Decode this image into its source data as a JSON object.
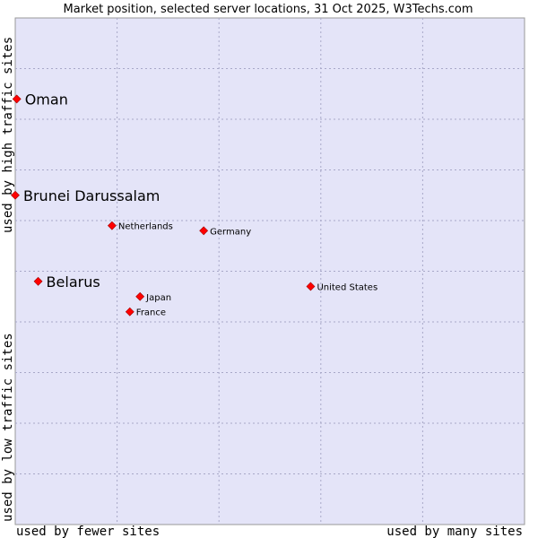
{
  "chart_data": {
    "type": "scatter",
    "title": "Market position, selected server locations, 31 Oct 2025, W3Techs.com",
    "xlabel_left": "used by fewer sites",
    "xlabel_right": "used by many sites",
    "ylabel_bottom": "used by low traffic sites",
    "ylabel_top": "used by high traffic sites",
    "xlim": [
      0,
      10
    ],
    "ylim": [
      0,
      10
    ],
    "grid": true,
    "x_gridlines": [
      2,
      4,
      6,
      8
    ],
    "y_gridlines": [
      1,
      2,
      3,
      4,
      5,
      6,
      7,
      8,
      9
    ],
    "marker_color": "#ff0000",
    "background_color": "#e4e4f8",
    "points": [
      {
        "name": "Oman",
        "x": 0.03,
        "y": 8.4,
        "highlight": true
      },
      {
        "name": "Brunei Darussalam",
        "x": 0.0,
        "y": 6.5,
        "highlight": true
      },
      {
        "name": "Belarus",
        "x": 0.45,
        "y": 4.8,
        "highlight": true
      },
      {
        "name": "Netherlands",
        "x": 1.9,
        "y": 5.9,
        "highlight": false
      },
      {
        "name": "Germany",
        "x": 3.7,
        "y": 5.8,
        "highlight": false
      },
      {
        "name": "United States",
        "x": 5.8,
        "y": 4.7,
        "highlight": false
      },
      {
        "name": "Japan",
        "x": 2.45,
        "y": 4.5,
        "highlight": false
      },
      {
        "name": "France",
        "x": 2.25,
        "y": 4.2,
        "highlight": false
      }
    ]
  }
}
